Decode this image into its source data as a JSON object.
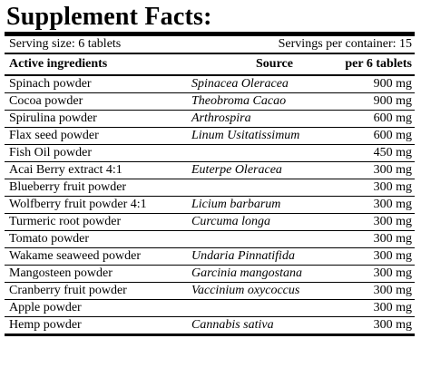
{
  "panel": {
    "title": "Supplement Facts:",
    "serving_size": "Serving size: 6 tablets",
    "servings_per_container": "Servings per container: 15"
  },
  "columns": {
    "ingredient": "Active ingredients",
    "source": "Source",
    "amount": "per 6 tablets"
  },
  "rows": [
    {
      "ingredient": "Spinach powder",
      "source": "Spinacea Oleracea",
      "amount": "900 mg"
    },
    {
      "ingredient": "Cocoa powder",
      "source": "Theobroma Cacao",
      "amount": "900 mg"
    },
    {
      "ingredient": "Spirulina powder",
      "source": "Arthrospira",
      "amount": "600 mg"
    },
    {
      "ingredient": "Flax seed powder",
      "source": "Linum Usitatissimum",
      "amount": "600 mg"
    },
    {
      "ingredient": "Fish Oil powder",
      "source": "",
      "amount": "450 mg"
    },
    {
      "ingredient": "Acai Berry extract 4:1",
      "source": "Euterpe Oleracea",
      "amount": "300 mg"
    },
    {
      "ingredient": "Blueberry fruit powder",
      "source": "",
      "amount": "300 mg"
    },
    {
      "ingredient": "Wolfberry fruit powder 4:1",
      "source": "Licium barbarum",
      "amount": "300 mg"
    },
    {
      "ingredient": "Turmeric root powder",
      "source": "Curcuma longa",
      "amount": "300 mg"
    },
    {
      "ingredient": "Tomato powder",
      "source": "",
      "amount": "300 mg"
    },
    {
      "ingredient": "Wakame seaweed powder",
      "source": "Undaria Pinnatifida",
      "amount": "300 mg"
    },
    {
      "ingredient": "Mangosteen powder",
      "source": "Garcinia mangostana",
      "amount": "300 mg"
    },
    {
      "ingredient": "Cranberry fruit powder",
      "source": "Vaccinium oxycoccus",
      "amount": "300 mg"
    },
    {
      "ingredient": "Apple powder",
      "source": "",
      "amount": "300 mg"
    },
    {
      "ingredient": "Hemp powder",
      "source": "Cannabis sativa",
      "amount": "300 mg"
    }
  ]
}
